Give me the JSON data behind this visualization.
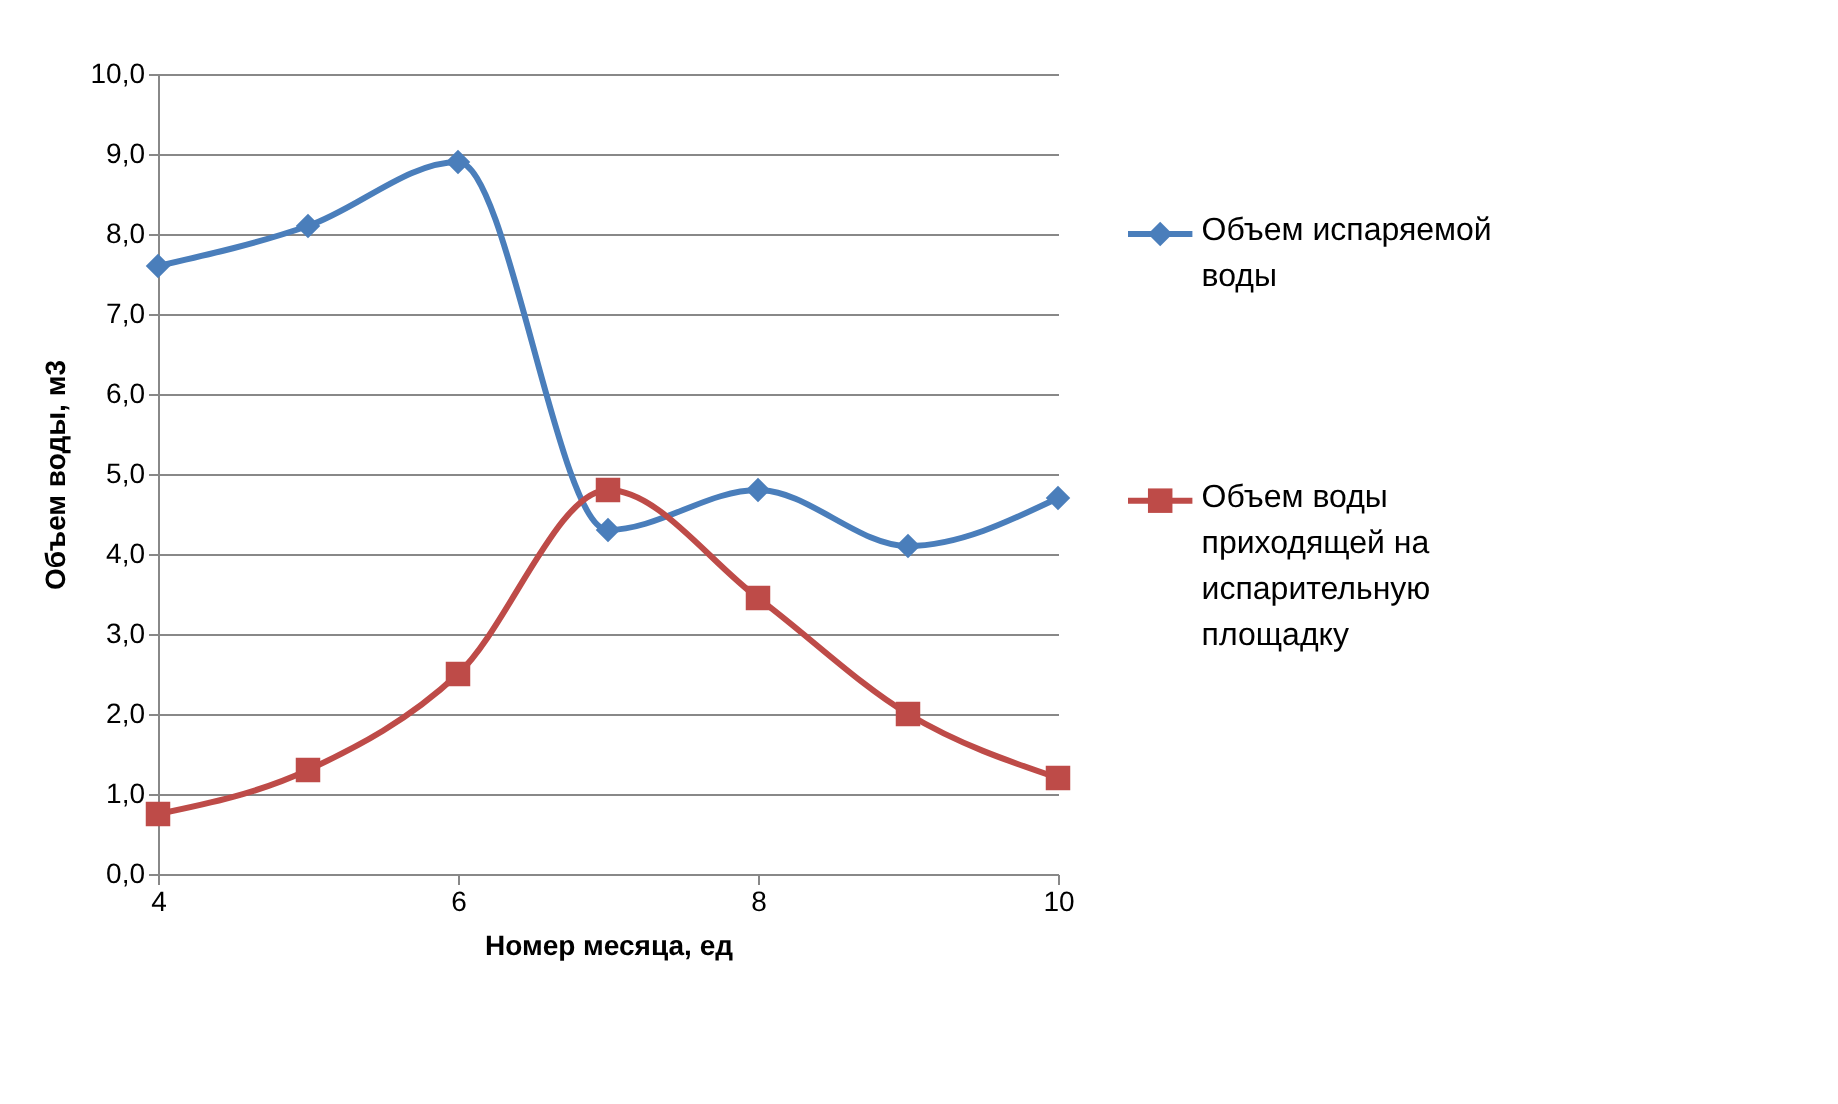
{
  "chart_data": {
    "type": "line",
    "xlabel": "Номер месяца, ед",
    "ylabel": "Объем воды, м3",
    "x": [
      4,
      5,
      6,
      7,
      8,
      9,
      10
    ],
    "series": [
      {
        "name": "Объем испаряемой воды",
        "color": "#4a7ebb",
        "marker": "diamond",
        "values": [
          7.6,
          8.1,
          8.9,
          4.3,
          4.8,
          4.1,
          4.7
        ]
      },
      {
        "name": "Объем воды приходящей на испарительную площадку",
        "color": "#be4b48",
        "marker": "square",
        "values": [
          0.75,
          1.3,
          2.5,
          4.8,
          3.45,
          2.0,
          1.2
        ]
      }
    ],
    "xlim": [
      4,
      10
    ],
    "xticks": [
      4,
      6,
      8,
      10
    ],
    "ylim": [
      0,
      10
    ],
    "yticks": [
      {
        "value": 0,
        "label": "0,0"
      },
      {
        "value": 1,
        "label": "1,0"
      },
      {
        "value": 2,
        "label": "2,0"
      },
      {
        "value": 3,
        "label": "3,0"
      },
      {
        "value": 4,
        "label": "4,0"
      },
      {
        "value": 5,
        "label": "5,0"
      },
      {
        "value": 6,
        "label": "6,0"
      },
      {
        "value": 7,
        "label": "7,0"
      },
      {
        "value": 8,
        "label": "8,0"
      },
      {
        "value": 9,
        "label": "9,0"
      },
      {
        "value": 10,
        "label": "10,0"
      }
    ],
    "grid": "y",
    "legend": "right"
  }
}
